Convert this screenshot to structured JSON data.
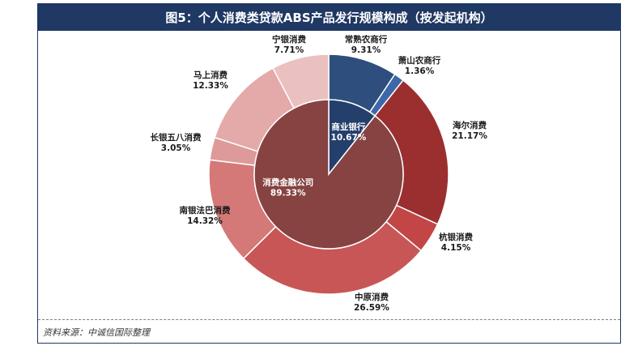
{
  "title": "图5：个人消费类贷款ABS产品发行规模构成（按发起机构）",
  "source": "资料来源：中诚信国际整理",
  "chart_data": {
    "type": "donut",
    "inner": [
      {
        "name": "商业银行",
        "pct": "10.67%",
        "value": 10.67,
        "color": "#243f6b"
      },
      {
        "name": "消费金融公司",
        "pct": "89.33%",
        "value": 89.33,
        "color": "#864342"
      }
    ],
    "outer": [
      {
        "name": "常熟农商行",
        "pct": "9.31%",
        "value": 9.31,
        "color": "#2e4f7e"
      },
      {
        "name": "萧山农商行",
        "pct": "1.36%",
        "value": 1.36,
        "color": "#3d68a8"
      },
      {
        "name": "海尔消费",
        "pct": "21.17%",
        "value": 21.17,
        "color": "#9b2f2f"
      },
      {
        "name": "杭银消费",
        "pct": "4.15%",
        "value": 4.15,
        "color": "#c24646"
      },
      {
        "name": "中原消费",
        "pct": "26.59%",
        "value": 26.59,
        "color": "#c85656"
      },
      {
        "name": "南银法巴消费",
        "pct": "14.32%",
        "value": 14.32,
        "color": "#d47878"
      },
      {
        "name": "长银五八消费",
        "pct": "3.05%",
        "value": 3.05,
        "color": "#de9a9a"
      },
      {
        "name": "马上消费",
        "pct": "12.33%",
        "value": 12.33,
        "color": "#e4a9a9"
      },
      {
        "name": "宁银消费",
        "pct": "7.71%",
        "value": 7.71,
        "color": "#ebc0c0"
      }
    ]
  }
}
